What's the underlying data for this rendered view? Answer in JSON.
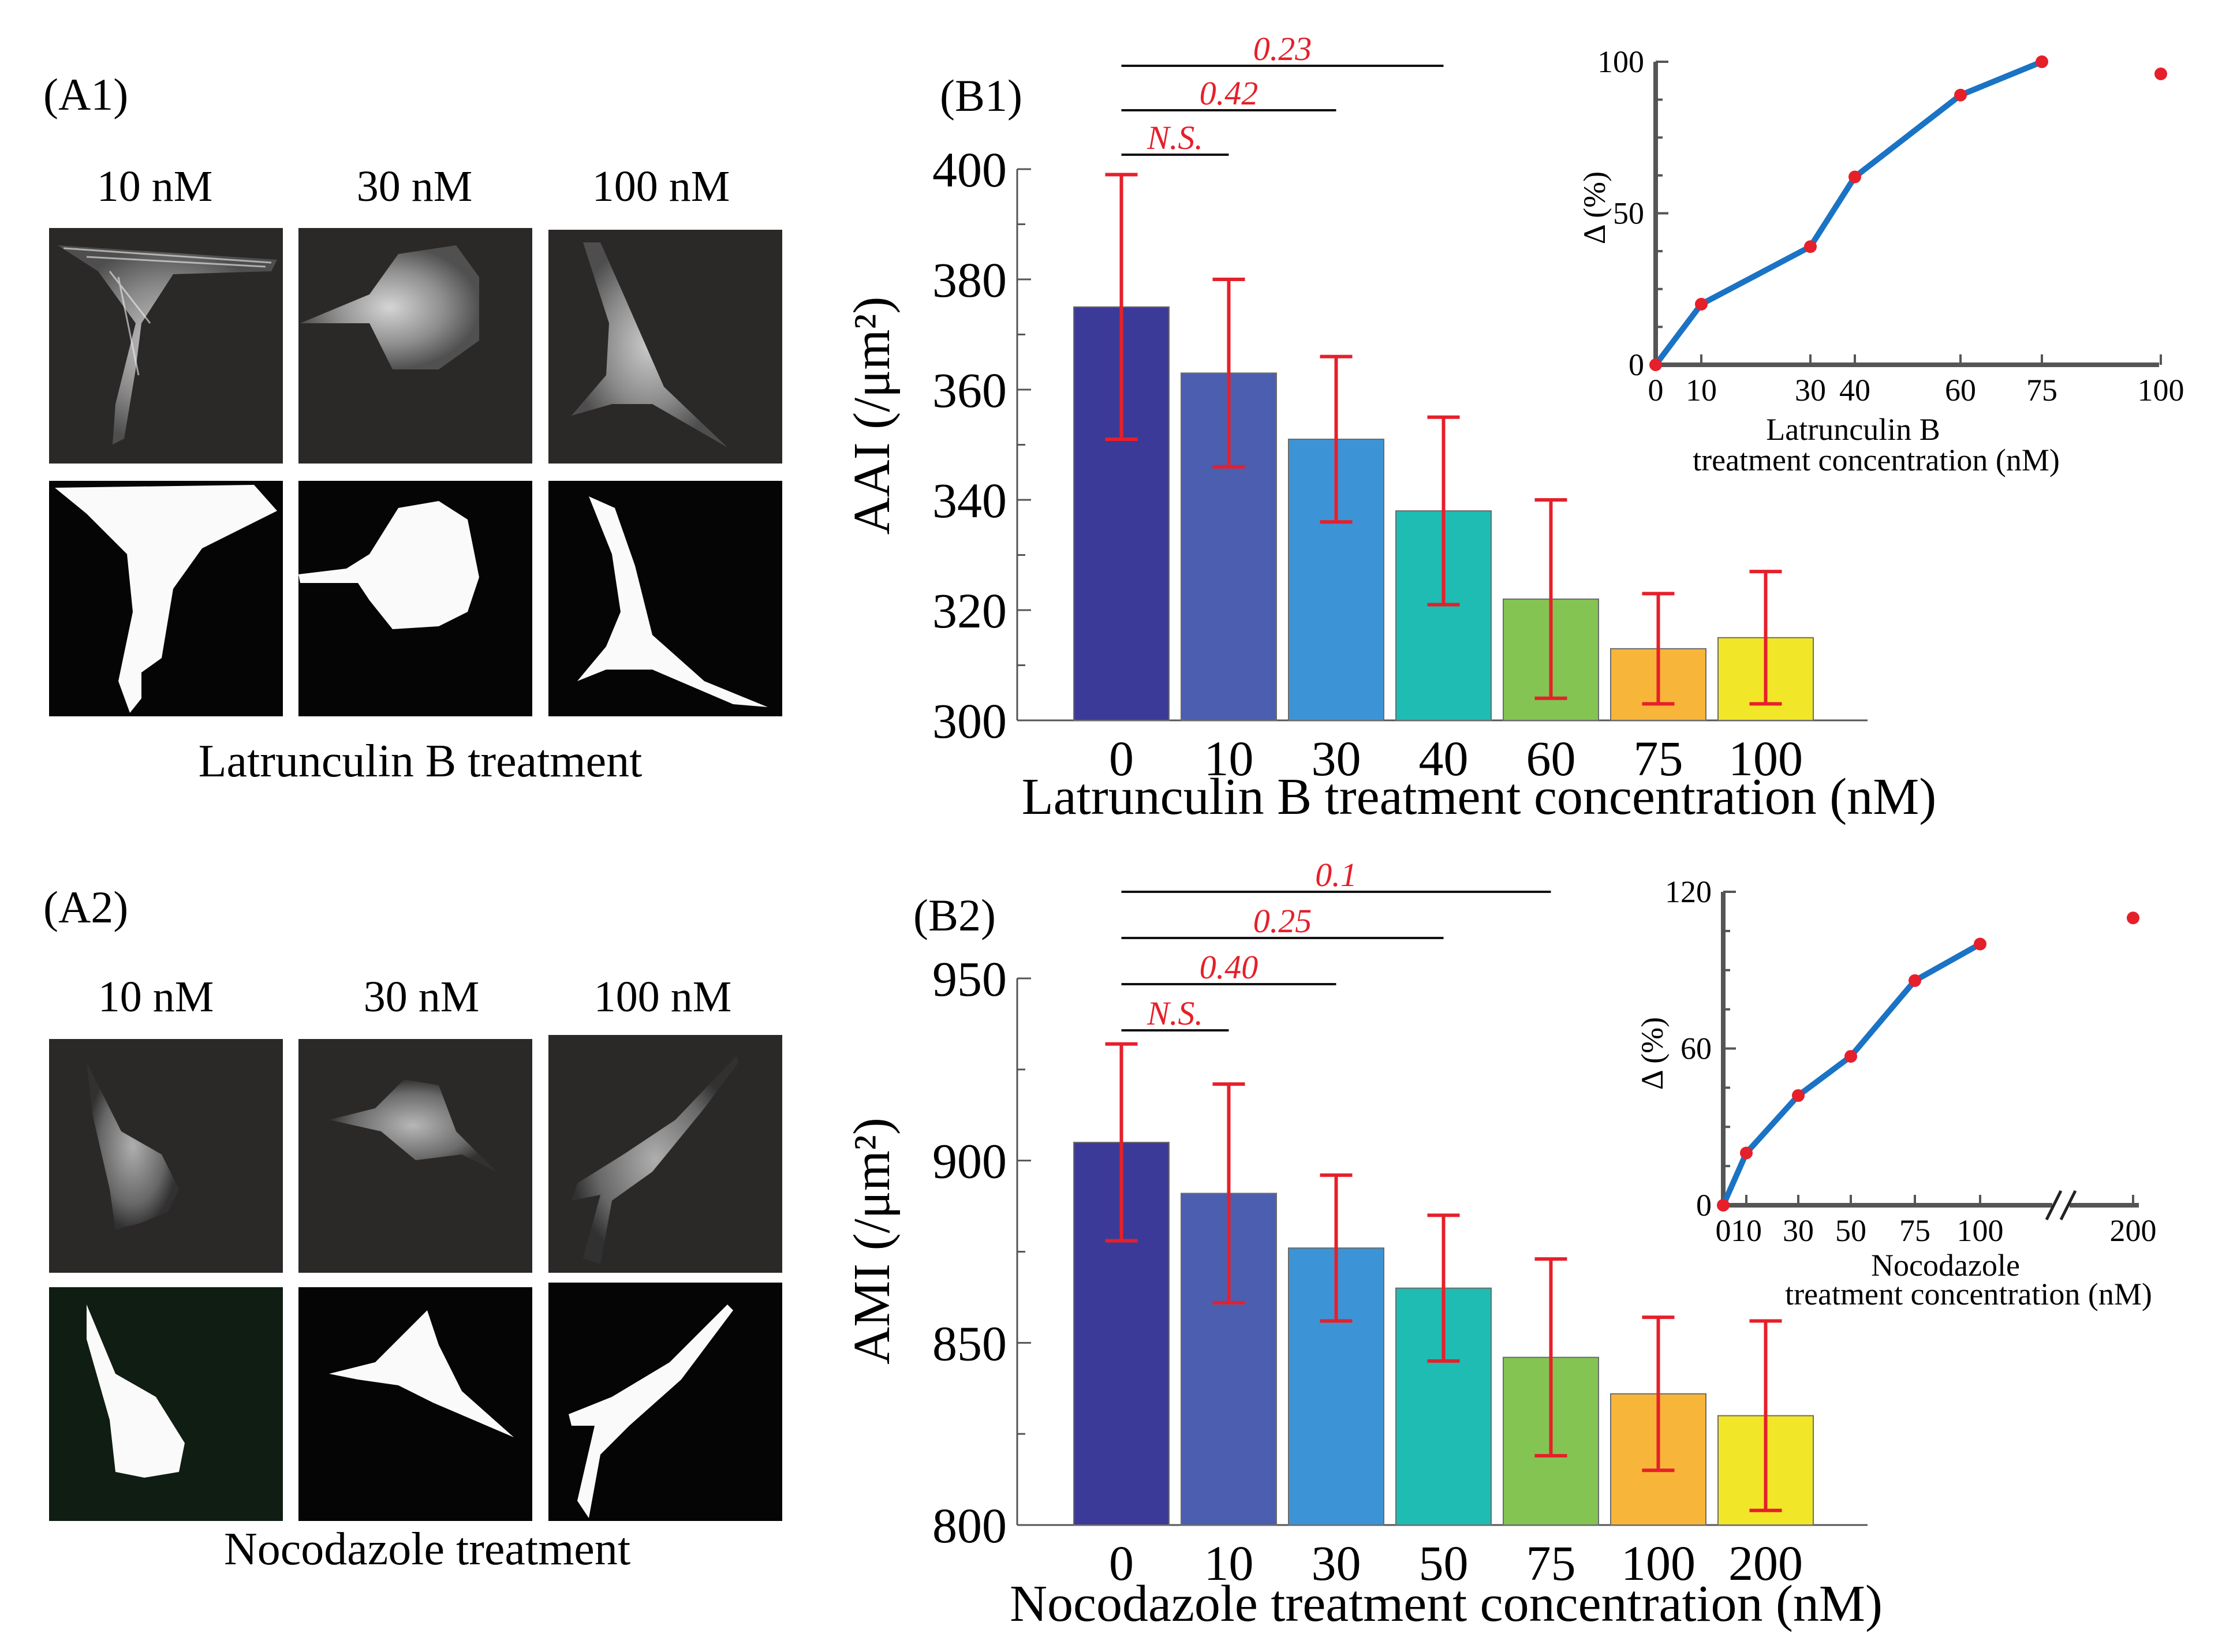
{
  "panel_labels": {
    "a1": "(A1)",
    "a2": "(A2)",
    "b1": "(B1)",
    "b2": "(B2)"
  },
  "micrographs": {
    "a1": {
      "concentrations": [
        "10 nM",
        "30 nM",
        "100 nM"
      ],
      "caption": "Latrunculin B treatment"
    },
    "a2": {
      "concentrations": [
        "10 nM",
        "30 nM",
        "100 nM"
      ],
      "caption": "Nocodazole treatment"
    }
  },
  "colors": {
    "bars": [
      "#3c3a98",
      "#4c5eb0",
      "#3c94d6",
      "#1fbcb4",
      "#84c452",
      "#f7b53a",
      "#f2e628"
    ],
    "error": "#e5202a",
    "significance": "#e5202a",
    "inset_line": "#1a73c4",
    "inset_point": "#e5202a"
  },
  "chart_data": [
    {
      "id": "B1",
      "type": "bar",
      "categories": [
        "0",
        "10",
        "30",
        "40",
        "60",
        "75",
        "100"
      ],
      "values": [
        375,
        363,
        351,
        338,
        322,
        313,
        315
      ],
      "errors": [
        24,
        17,
        15,
        17,
        18,
        10,
        12
      ],
      "ylim": [
        300,
        400
      ],
      "yticks": [
        300,
        320,
        340,
        360,
        380,
        400
      ],
      "ylabel": "AAI (/μm²)",
      "xlabel": "Latrunculin B treatment concentration (nM)",
      "significance": [
        {
          "from": "0",
          "to": "10",
          "label": "N.S."
        },
        {
          "from": "0",
          "to": "30",
          "label": "0.42"
        },
        {
          "from": "0",
          "to": "40",
          "label": "0.23"
        }
      ],
      "inset": {
        "type": "line",
        "x": [
          0,
          10,
          30,
          40,
          60,
          75
        ],
        "y": [
          0,
          20,
          39,
          62,
          89,
          100
        ],
        "outlier": {
          "x": 100,
          "y": 96
        },
        "xticks": [
          "0",
          "10",
          "30",
          "40",
          "60",
          "75",
          "100"
        ],
        "yticks": [
          "0",
          "50",
          "100"
        ],
        "ylim": [
          0,
          100
        ],
        "ylabel": "Δ (%)",
        "xlabel_line1": "Latrunculin B",
        "xlabel_line2": "treatment concentration (nM)"
      }
    },
    {
      "id": "B2",
      "type": "bar",
      "categories": [
        "0",
        "10",
        "30",
        "50",
        "75",
        "100",
        "200"
      ],
      "values": [
        905,
        891,
        876,
        865,
        846,
        836,
        830
      ],
      "errors": [
        27,
        30,
        20,
        20,
        27,
        21,
        26
      ],
      "ylim": [
        800,
        950
      ],
      "yticks": [
        800,
        850,
        900,
        950
      ],
      "ylabel": "AMI (/μm²)",
      "xlabel": "Nocodazole treatment concentration (nM)",
      "significance": [
        {
          "from": "0",
          "to": "10",
          "label": "N.S."
        },
        {
          "from": "0",
          "to": "30",
          "label": "0.40"
        },
        {
          "from": "0",
          "to": "50",
          "label": "0.25"
        },
        {
          "from": "0",
          "to": "75",
          "label": "0.1"
        }
      ],
      "inset": {
        "type": "line",
        "x": [
          0,
          10,
          30,
          50,
          75,
          100
        ],
        "y": [
          0,
          20,
          42,
          57,
          86,
          100
        ],
        "outlier": {
          "x": 200,
          "y": 110
        },
        "xticks": [
          "0",
          "10",
          "30",
          "50",
          "75",
          "100",
          "200"
        ],
        "yticks": [
          "0",
          "60",
          "120"
        ],
        "ylim": [
          0,
          120
        ],
        "ylabel": "Δ (%)",
        "xlabel_line1": "Nocodazole",
        "xlabel_line2": "treatment concentration (nM)"
      }
    }
  ]
}
